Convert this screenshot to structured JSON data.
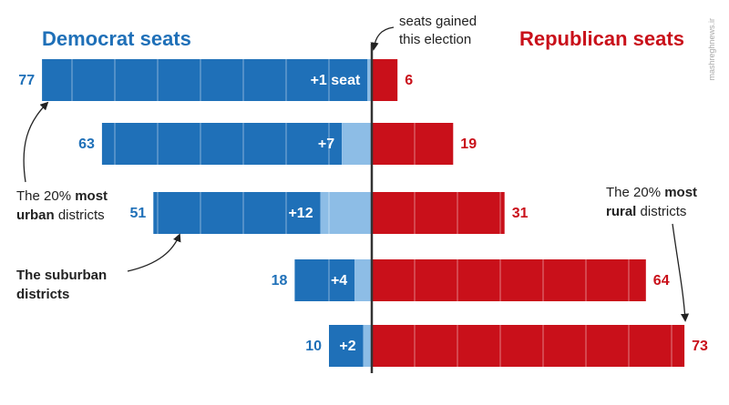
{
  "headers": {
    "dem": "Democrat seats",
    "rep": "Republican seats",
    "axis_note_line1": "seats gained",
    "axis_note_line2": "this election"
  },
  "annotations": {
    "urban": [
      "The 20% ",
      "most",
      "urban",
      " districts"
    ],
    "suburban": [
      "The suburban",
      "districts"
    ],
    "rural": [
      "The 20% ",
      "most",
      "rural",
      " districts"
    ]
  },
  "watermark": "mashreghnews.ir",
  "colors": {
    "dem": "#1f70b8",
    "dem_gain": "#8dbde6",
    "rep": "#c9101a",
    "divider": "#333333"
  },
  "chart_data": {
    "type": "bar",
    "orientation": "horizontal-diverging",
    "categories": [
      "",
      "",
      "",
      "",
      ""
    ],
    "series": [
      {
        "name": "Democrat seats",
        "values": [
          77,
          63,
          51,
          18,
          10
        ]
      },
      {
        "name": "Republican seats",
        "values": [
          6,
          19,
          31,
          64,
          73
        ]
      },
      {
        "name": "seats gained this election",
        "values": [
          1,
          7,
          12,
          4,
          2
        ]
      }
    ],
    "value_labels_dem": [
      "77",
      "63",
      "51",
      "18",
      "10"
    ],
    "value_labels_rep": [
      "6",
      "19",
      "31",
      "64",
      "73"
    ],
    "gain_labels": [
      "+1 seat",
      "+7",
      "+12",
      "+4",
      "+2"
    ],
    "gridline_step": 10
  }
}
